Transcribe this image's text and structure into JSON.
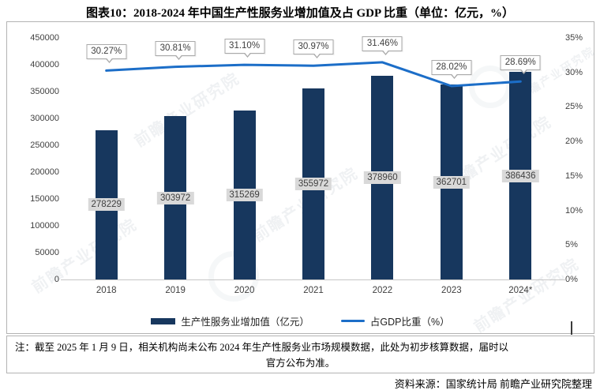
{
  "title": "图表10：2018-2024 年中国生产性服务业增加值及占 GDP 比重（单位：亿元，%）",
  "chart_data": {
    "type": "bar",
    "categories": [
      "2018",
      "2019",
      "2020",
      "2021",
      "2022",
      "2023",
      "2024*"
    ],
    "series": [
      {
        "name": "生产性服务业增加值（亿元）",
        "type": "bar",
        "axis": "left",
        "values": [
          278229,
          303972,
          315269,
          355972,
          378960,
          362701,
          386436
        ],
        "labels": [
          "278229",
          "303972",
          "315269",
          "355972",
          "378960",
          "362701",
          "386436"
        ],
        "color": "#17375E"
      },
      {
        "name": "占GDP比重（%）",
        "type": "line",
        "axis": "right",
        "values": [
          30.27,
          30.81,
          31.1,
          30.97,
          31.46,
          28.02,
          28.69
        ],
        "labels": [
          "30.27%",
          "30.81%",
          "31.10%",
          "30.97%",
          "31.46%",
          "28.02%",
          "28.69%"
        ],
        "color": "#1C6EC8"
      }
    ],
    "left_axis": {
      "min": 0,
      "max": 450000,
      "step": 50000,
      "tick_labels": [
        "0",
        "50000",
        "100000",
        "150000",
        "200000",
        "250000",
        "300000",
        "350000",
        "400000",
        "450000"
      ]
    },
    "right_axis": {
      "min": 0,
      "max": 35,
      "step": 5,
      "tick_labels": [
        "0%",
        "5%",
        "10%",
        "15%",
        "20%",
        "25%",
        "30%",
        "35%"
      ]
    },
    "grid": false,
    "legend_position": "bottom"
  },
  "legend": {
    "items": [
      {
        "label": "生产性服务业增加值（亿元）"
      },
      {
        "label": "占GDP比重（%）"
      }
    ]
  },
  "note": {
    "line1": "注：截至 2025 年 1 月 9 日，相关机构尚未公布 2024 年生产性服务业市场规模数据，此处为初步核算数据，届时以",
    "line2": "官方公布为准。"
  },
  "source": "资料来源：国家统计局 前瞻产业研究院整理",
  "watermark": "前瞻产业研究院",
  "colors": {
    "bar": "#17375E",
    "line": "#1C6EC8",
    "bar_label_bg": "#d9d9d9",
    "callout_border": "#a9a9a9"
  }
}
